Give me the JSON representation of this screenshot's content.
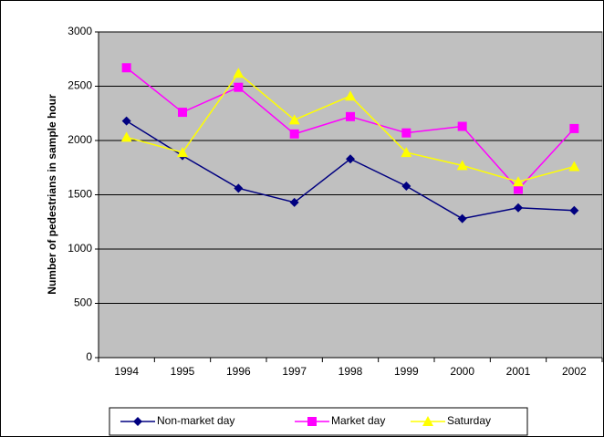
{
  "chart_data": {
    "type": "line",
    "y_label": "Number of pedestrians in sample hour",
    "categories": [
      "1994",
      "1995",
      "1996",
      "1997",
      "1998",
      "1999",
      "2000",
      "2001",
      "2002"
    ],
    "series": [
      {
        "name": "Non-market day",
        "color": "#000080",
        "marker": "diamond",
        "values": [
          2180,
          1860,
          1560,
          1430,
          1830,
          1580,
          1280,
          1380,
          1355
        ]
      },
      {
        "name": "Market day",
        "color": "#ff00ff",
        "marker": "square",
        "values": [
          2670,
          2260,
          2490,
          2060,
          2220,
          2070,
          2130,
          1550,
          2110
        ]
      },
      {
        "name": "Saturday",
        "color": "#ffff00",
        "marker": "triangle",
        "values": [
          2030,
          1890,
          2620,
          2190,
          2410,
          1890,
          1770,
          1620,
          1760
        ]
      }
    ],
    "ylim": [
      0,
      3000
    ],
    "yticks": [
      0,
      500,
      1000,
      1500,
      2000,
      2500,
      3000
    ],
    "grid": true,
    "plot_background": "#c0c0c0",
    "legend": "bottom"
  }
}
